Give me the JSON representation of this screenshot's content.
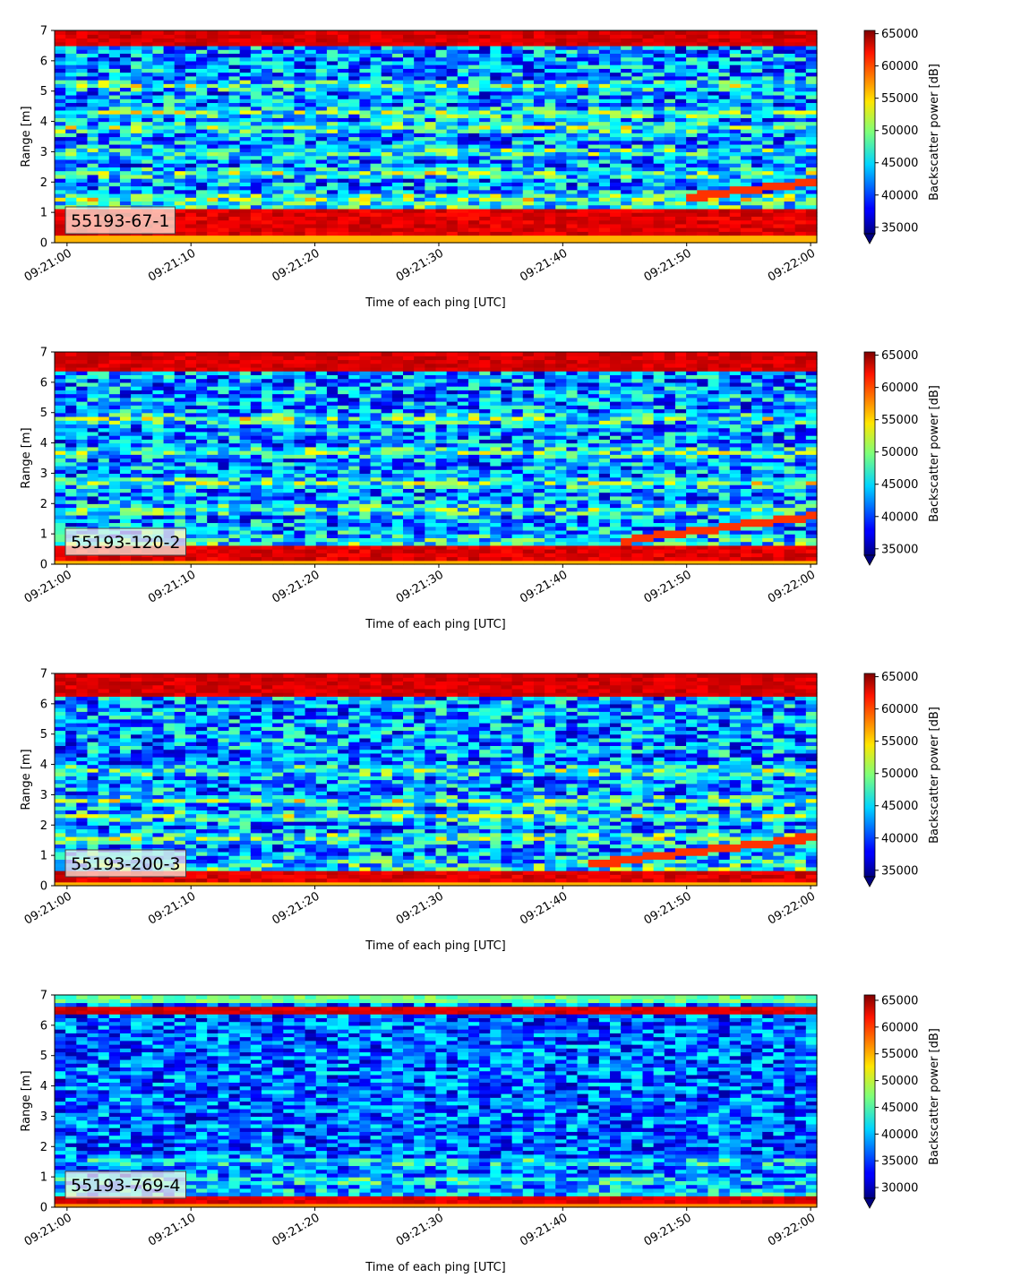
{
  "chart_data": [
    {
      "type": "heatmap",
      "panel_label": "55193-67-1",
      "xlabel": "Time of each ping [UTC]",
      "ylabel": "Range [m]",
      "x_ticks": [
        "09:21:00",
        "09:21:10",
        "09:21:20",
        "09:21:30",
        "09:21:40",
        "09:21:50",
        "09:22:00"
      ],
      "x_tick_seconds": [
        0,
        10,
        20,
        30,
        40,
        50,
        60
      ],
      "x_range_seconds": [
        -1,
        60.5
      ],
      "y_ticks": [
        0,
        1,
        2,
        3,
        4,
        5,
        6,
        7
      ],
      "ylim": [
        0,
        7
      ],
      "colorbar": {
        "label": "Backscatter power [dB]",
        "ticks": [
          35000,
          40000,
          45000,
          50000,
          55000,
          60000,
          65000
        ],
        "range": [
          34000,
          65500
        ],
        "extend": "min"
      },
      "colormap": "jet",
      "features": {
        "bottom_band": {
          "range_m": [
            0.2,
            1.1
          ],
          "level": 64000
        },
        "top_band": {
          "range_m": [
            6.5,
            7.0
          ],
          "level": 64000
        },
        "green_layers_m": [
          1.5,
          2.3,
          3.0,
          3.8,
          4.3,
          5.2
        ],
        "rising_line": {
          "start_s": 50,
          "start_m": 1.5,
          "end_s": 60,
          "end_m": 2.0
        }
      }
    },
    {
      "type": "heatmap",
      "panel_label": "55193-120-2",
      "xlabel": "Time of each ping [UTC]",
      "ylabel": "Range [m]",
      "x_ticks": [
        "09:21:00",
        "09:21:10",
        "09:21:20",
        "09:21:30",
        "09:21:40",
        "09:21:50",
        "09:22:00"
      ],
      "x_tick_seconds": [
        0,
        10,
        20,
        30,
        40,
        50,
        60
      ],
      "x_range_seconds": [
        -1,
        60.5
      ],
      "y_ticks": [
        0,
        1,
        2,
        3,
        4,
        5,
        6,
        7
      ],
      "ylim": [
        0,
        7
      ],
      "colorbar": {
        "label": "Backscatter power [dB]",
        "ticks": [
          35000,
          40000,
          45000,
          50000,
          55000,
          60000,
          65000
        ],
        "range": [
          34000,
          65500
        ],
        "extend": "min"
      },
      "colormap": "jet",
      "features": {
        "bottom_band": {
          "range_m": [
            0.1,
            0.6
          ],
          "level": 64000
        },
        "top_band": {
          "range_m": [
            6.4,
            7.0
          ],
          "level": 64000
        },
        "green_layers_m": [
          1.8,
          2.7,
          3.7,
          4.8
        ],
        "rising_line": {
          "start_s": 45,
          "start_m": 0.8,
          "end_s": 60,
          "end_m": 1.6
        }
      }
    },
    {
      "type": "heatmap",
      "panel_label": "55193-200-3",
      "xlabel": "Time of each ping [UTC]",
      "ylabel": "Range [m]",
      "x_ticks": [
        "09:21:00",
        "09:21:10",
        "09:21:20",
        "09:21:30",
        "09:21:40",
        "09:21:50",
        "09:22:00"
      ],
      "x_tick_seconds": [
        0,
        10,
        20,
        30,
        40,
        50,
        60
      ],
      "x_range_seconds": [
        -1,
        60.5
      ],
      "y_ticks": [
        0,
        1,
        2,
        3,
        4,
        5,
        6,
        7
      ],
      "ylim": [
        0,
        7
      ],
      "colorbar": {
        "label": "Backscatter power [dB]",
        "ticks": [
          35000,
          40000,
          45000,
          50000,
          55000,
          60000,
          65000
        ],
        "range": [
          34000,
          65500
        ],
        "extend": "min"
      },
      "colormap": "jet",
      "features": {
        "bottom_band": {
          "range_m": [
            0.1,
            0.5
          ],
          "level": 64000
        },
        "top_band": {
          "range_m": [
            6.3,
            7.0
          ],
          "level": 64000
        },
        "green_layers_m": [
          1.6,
          2.3,
          2.8,
          3.8
        ],
        "rising_line": {
          "start_s": 42,
          "start_m": 0.7,
          "end_s": 60,
          "end_m": 1.6
        }
      }
    },
    {
      "type": "heatmap",
      "panel_label": "55193-769-4",
      "xlabel": "Time of each ping [UTC]",
      "ylabel": "Range [m]",
      "x_ticks": [
        "09:21:00",
        "09:21:10",
        "09:21:20",
        "09:21:30",
        "09:21:40",
        "09:21:50",
        "09:22:00"
      ],
      "x_tick_seconds": [
        0,
        10,
        20,
        30,
        40,
        50,
        60
      ],
      "x_range_seconds": [
        -1,
        60.5
      ],
      "y_ticks": [
        0,
        1,
        2,
        3,
        4,
        5,
        6,
        7
      ],
      "ylim": [
        0,
        7
      ],
      "colorbar": {
        "label": "Backscatter power [dB]",
        "ticks": [
          30000,
          35000,
          40000,
          45000,
          50000,
          55000,
          60000,
          65000
        ],
        "range": [
          28000,
          66000
        ],
        "extend": "min"
      },
      "colormap": "jet",
      "features": {
        "bottom_band": {
          "range_m": [
            0.1,
            0.35
          ],
          "level": 64000
        },
        "top_band": {
          "range_m": [
            6.4,
            6.6
          ],
          "level": 64000
        },
        "top_strip": {
          "range_m": [
            6.7,
            7.0
          ],
          "level": 46000
        },
        "green_layers_m": [
          0.9,
          1.5
        ],
        "rising_line": null
      }
    }
  ]
}
